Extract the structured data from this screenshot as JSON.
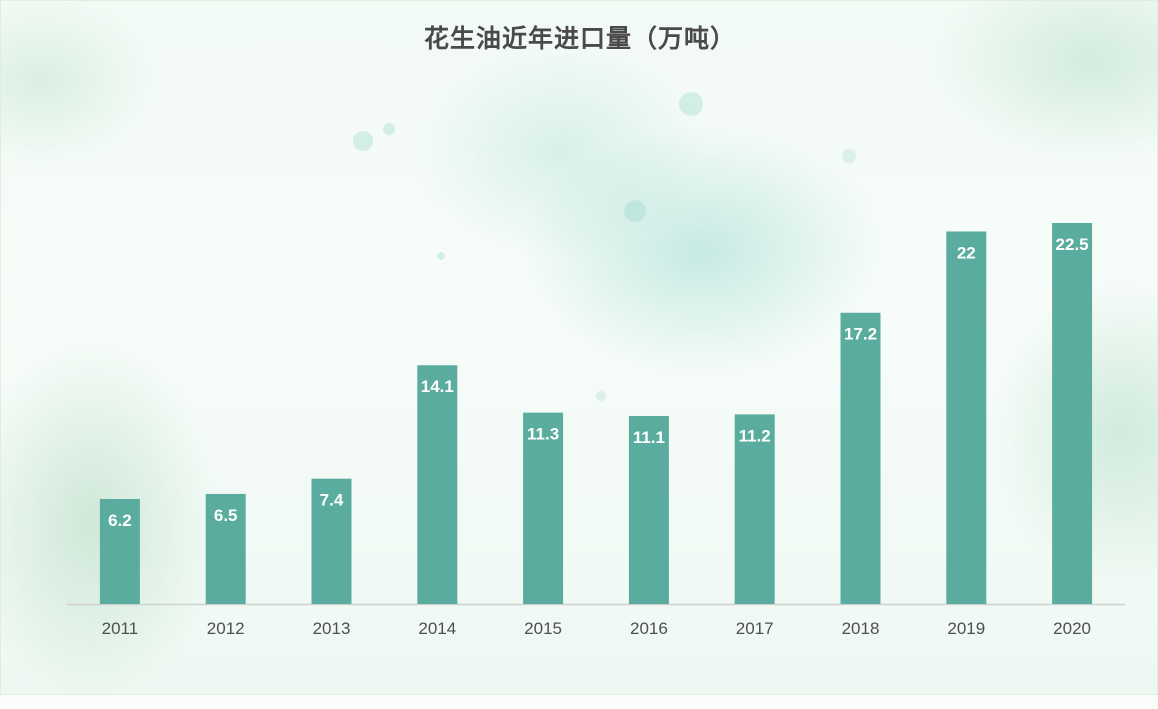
{
  "chart_data": {
    "type": "bar",
    "title": "花生油近年进口量（万吨）",
    "categories": [
      "2011",
      "2012",
      "2013",
      "2014",
      "2015",
      "2016",
      "2017",
      "2018",
      "2019",
      "2020"
    ],
    "values": [
      6.2,
      6.5,
      7.4,
      14.1,
      11.3,
      11.1,
      11.2,
      17.2,
      22,
      22.5
    ],
    "data_labels": [
      "6.2",
      "6.5",
      "7.4",
      "14.1",
      "11.3",
      "11.1",
      "11.2",
      "17.2",
      "22",
      "22.5"
    ],
    "xlabel": "",
    "ylabel": "",
    "ylim": [
      0,
      22.5
    ],
    "grid": false,
    "legend": "none",
    "colors": {
      "bar": "#5aad9e",
      "axis": "#d0d0d0",
      "title": "#4a4a4a",
      "tick": "#4f4f4f",
      "data_label": "#ffffff"
    }
  }
}
